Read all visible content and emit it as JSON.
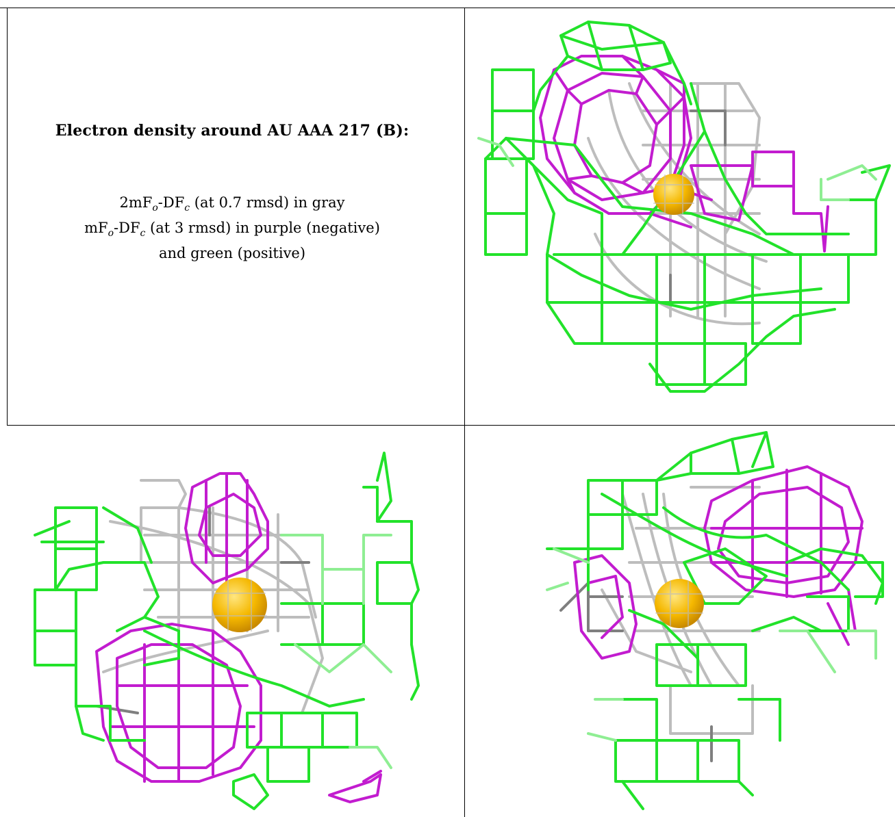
{
  "caption": {
    "title": "Electron density around AU AAA 217 (B):",
    "line1_prefix": "2mF",
    "line1_sub1": "o",
    "line1_mid": "-DF",
    "line1_sub2": "c",
    "line1_suffix": " (at 0.7 rmsd) in gray",
    "line2_prefix": "mF",
    "line2_sub1": "o",
    "line2_mid": "-DF",
    "line2_sub2": "c",
    "line2_suffix": " (at 3 rmsd) in purple (negative)",
    "line3": "and green (positive)"
  },
  "colors": {
    "positive_mesh": "#22e22a",
    "negative_mesh": "#c21ccf",
    "density_mesh": "#bdbdbd",
    "atom_sphere": "#f5b800"
  },
  "panels": [
    {
      "name": "view-top-right"
    },
    {
      "name": "view-bottom-left"
    },
    {
      "name": "view-bottom-right"
    }
  ]
}
